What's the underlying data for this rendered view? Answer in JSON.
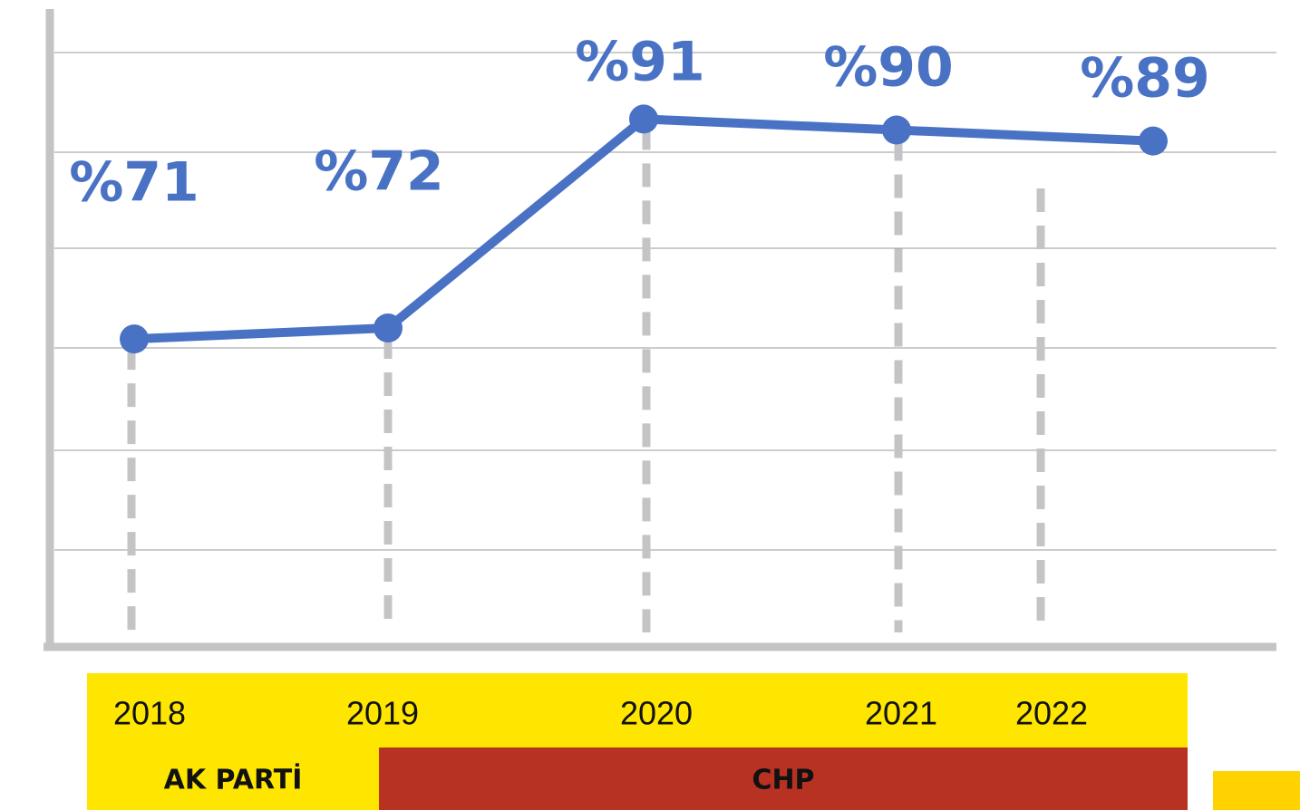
{
  "chart_data": {
    "type": "line",
    "categories": [
      "2018",
      "2019",
      "2020",
      "2021",
      "2022"
    ],
    "series": [
      {
        "color": "#4a72c4",
        "values": [
          71,
          72,
          91,
          90,
          89
        ],
        "value_labels": [
          "%71",
          "%72",
          "%91",
          "%90",
          "%89"
        ]
      }
    ],
    "ylim": [
      43,
      101
    ],
    "annotations": [
      "AK PARTİ",
      "CHP"
    ]
  }
}
